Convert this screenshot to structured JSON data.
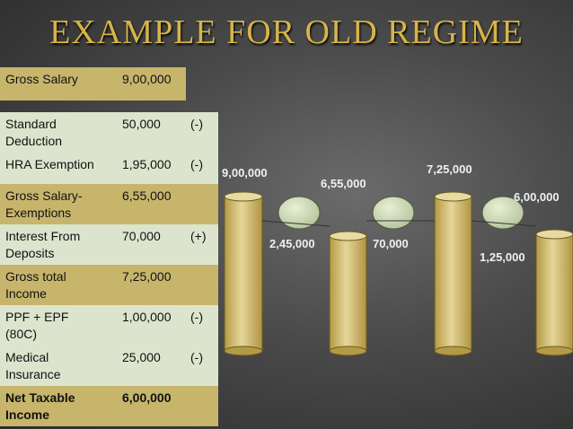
{
  "title": "EXAMPLE FOR OLD REGIME",
  "table": {
    "rows": [
      {
        "label": "Gross Salary",
        "amount": "9,00,000"
      },
      {
        "label": "Standard Deduction",
        "amount": "50,000",
        "sign": "(-)"
      },
      {
        "label": "HRA Exemption",
        "amount": "1,95,000",
        "sign": "(-)"
      },
      {
        "label": "Gross Salary-Exemptions",
        "amount": "6,55,000"
      },
      {
        "label": "Interest From Deposits",
        "amount": "70,000",
        "sign": "(+)"
      },
      {
        "label": "Gross total Income",
        "amount": "7,25,000"
      },
      {
        "label": "PPF + EPF (80C)",
        "amount": "1,00,000",
        "sign": "(-)"
      },
      {
        "label": "Medical Insurance",
        "amount": "25,000",
        "sign": "(-)"
      },
      {
        "label": "Net Taxable Income",
        "amount": "6,00,000"
      }
    ]
  },
  "diagram": {
    "labels": [
      "9,00,000",
      "2,45,000",
      "6,55,000",
      "70,000",
      "7,25,000",
      "1,25,000",
      "6,00,000"
    ]
  }
}
